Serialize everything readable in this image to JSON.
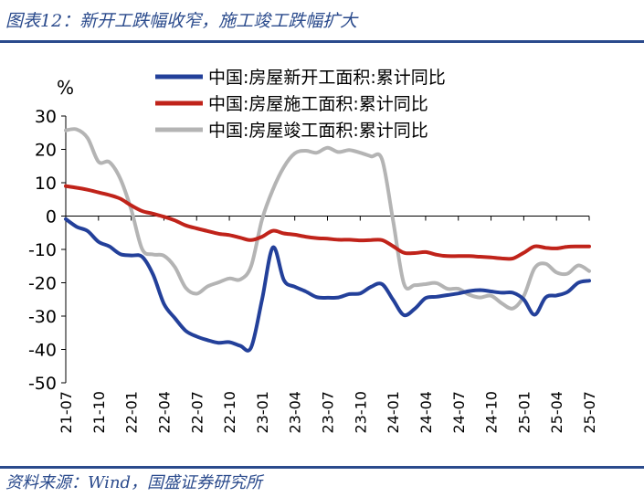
{
  "header": {
    "title": "图表12：新开工跌幅收窄，施工竣工跌幅扩大"
  },
  "footer": {
    "source": "资料来源：Wind，国盛证券研究所"
  },
  "chart_data": {
    "type": "line",
    "ylabel": "%",
    "ylim": [
      -50,
      30
    ],
    "yticks": [
      30,
      20,
      10,
      0,
      -10,
      -20,
      -30,
      -40,
      -50
    ],
    "xlim": [
      "2021-07",
      "2025-07"
    ],
    "xticks": [
      "21-07",
      "21-10",
      "22-01",
      "22-04",
      "22-07",
      "22-10",
      "23-01",
      "23-04",
      "23-07",
      "23-10",
      "24-01",
      "24-04",
      "24-07",
      "24-10",
      "25-01",
      "25-04",
      "25-07"
    ],
    "legend": {
      "position": "top-right"
    },
    "series": [
      {
        "name": "中国:房屋新开工面积:累计同比",
        "color": "#23409a",
        "points": [
          [
            "2021-07",
            -0.9
          ],
          [
            "2021-08",
            -3.2
          ],
          [
            "2021-09",
            -4.5
          ],
          [
            "2021-10",
            -7.7
          ],
          [
            "2021-11",
            -9.1
          ],
          [
            "2021-12",
            -11.4
          ],
          [
            "2022-01",
            -11.8
          ],
          [
            "2022-02",
            -12.2
          ],
          [
            "2022-03",
            -17.5
          ],
          [
            "2022-04",
            -26.3
          ],
          [
            "2022-05",
            -30.6
          ],
          [
            "2022-06",
            -34.4
          ],
          [
            "2022-07",
            -36.1
          ],
          [
            "2022-08",
            -37.2
          ],
          [
            "2022-09",
            -38.0
          ],
          [
            "2022-10",
            -37.8
          ],
          [
            "2022-11",
            -38.9
          ],
          [
            "2022-12",
            -39.4
          ],
          [
            "2023-01",
            -25.0
          ],
          [
            "2023-02",
            -9.4
          ],
          [
            "2023-03",
            -19.2
          ],
          [
            "2023-04",
            -21.2
          ],
          [
            "2023-05",
            -22.6
          ],
          [
            "2023-06",
            -24.3
          ],
          [
            "2023-07",
            -24.5
          ],
          [
            "2023-08",
            -24.4
          ],
          [
            "2023-09",
            -23.4
          ],
          [
            "2023-10",
            -23.2
          ],
          [
            "2023-11",
            -21.2
          ],
          [
            "2023-12",
            -20.4
          ],
          [
            "2024-01",
            -25.0
          ],
          [
            "2024-02",
            -29.7
          ],
          [
            "2024-03",
            -27.8
          ],
          [
            "2024-04",
            -24.6
          ],
          [
            "2024-05",
            -24.2
          ],
          [
            "2024-06",
            -23.7
          ],
          [
            "2024-07",
            -23.2
          ],
          [
            "2024-08",
            -22.5
          ],
          [
            "2024-09",
            -22.2
          ],
          [
            "2024-10",
            -22.6
          ],
          [
            "2024-11",
            -23.0
          ],
          [
            "2024-12",
            -23.0
          ],
          [
            "2025-01",
            -25.0
          ],
          [
            "2025-02",
            -29.6
          ],
          [
            "2025-03",
            -24.4
          ],
          [
            "2025-04",
            -23.8
          ],
          [
            "2025-05",
            -22.8
          ],
          [
            "2025-06",
            -20.0
          ],
          [
            "2025-07",
            -19.4
          ]
        ]
      },
      {
        "name": "中国:房屋施工面积:累计同比",
        "color": "#c0231a",
        "points": [
          [
            "2021-07",
            9.0
          ],
          [
            "2021-08",
            8.5
          ],
          [
            "2021-09",
            7.9
          ],
          [
            "2021-10",
            7.1
          ],
          [
            "2021-11",
            6.3
          ],
          [
            "2021-12",
            5.2
          ],
          [
            "2022-01",
            3.2
          ],
          [
            "2022-02",
            1.5
          ],
          [
            "2022-03",
            0.7
          ],
          [
            "2022-04",
            -0.2
          ],
          [
            "2022-05",
            -1.3
          ],
          [
            "2022-06",
            -2.8
          ],
          [
            "2022-07",
            -3.7
          ],
          [
            "2022-08",
            -4.5
          ],
          [
            "2022-09",
            -5.3
          ],
          [
            "2022-10",
            -5.7
          ],
          [
            "2022-11",
            -6.5
          ],
          [
            "2022-12",
            -7.2
          ],
          [
            "2023-01",
            -6.2
          ],
          [
            "2023-02",
            -4.4
          ],
          [
            "2023-03",
            -5.2
          ],
          [
            "2023-04",
            -5.6
          ],
          [
            "2023-05",
            -6.2
          ],
          [
            "2023-06",
            -6.6
          ],
          [
            "2023-07",
            -6.8
          ],
          [
            "2023-08",
            -7.1
          ],
          [
            "2023-09",
            -7.1
          ],
          [
            "2023-10",
            -7.3
          ],
          [
            "2023-11",
            -7.2
          ],
          [
            "2023-12",
            -7.2
          ],
          [
            "2024-01",
            -9.0
          ],
          [
            "2024-02",
            -11.0
          ],
          [
            "2024-03",
            -11.1
          ],
          [
            "2024-04",
            -10.8
          ],
          [
            "2024-05",
            -11.6
          ],
          [
            "2024-06",
            -12.0
          ],
          [
            "2024-07",
            -12.0
          ],
          [
            "2024-08",
            -12.0
          ],
          [
            "2024-09",
            -12.2
          ],
          [
            "2024-10",
            -12.4
          ],
          [
            "2024-11",
            -12.7
          ],
          [
            "2024-12",
            -12.7
          ],
          [
            "2025-01",
            -11.0
          ],
          [
            "2025-02",
            -9.1
          ],
          [
            "2025-03",
            -9.5
          ],
          [
            "2025-04",
            -9.7
          ],
          [
            "2025-05",
            -9.2
          ],
          [
            "2025-06",
            -9.1
          ],
          [
            "2025-07",
            -9.1
          ]
        ]
      },
      {
        "name": "中国:房屋竣工面积:累计同比",
        "color": "#b4b4b4",
        "points": [
          [
            "2021-07",
            25.7
          ],
          [
            "2021-08",
            26.0
          ],
          [
            "2021-09",
            23.4
          ],
          [
            "2021-10",
            16.3
          ],
          [
            "2021-11",
            16.2
          ],
          [
            "2021-12",
            11.2
          ],
          [
            "2022-01",
            2.0
          ],
          [
            "2022-02",
            -9.9
          ],
          [
            "2022-03",
            -11.5
          ],
          [
            "2022-04",
            -11.9
          ],
          [
            "2022-05",
            -15.3
          ],
          [
            "2022-06",
            -21.5
          ],
          [
            "2022-07",
            -23.3
          ],
          [
            "2022-08",
            -21.1
          ],
          [
            "2022-09",
            -19.9
          ],
          [
            "2022-10",
            -18.7
          ],
          [
            "2022-11",
            -19.0
          ],
          [
            "2022-12",
            -15.0
          ],
          [
            "2023-01",
            -1.0
          ],
          [
            "2023-02",
            8.0
          ],
          [
            "2023-03",
            14.7
          ],
          [
            "2023-04",
            18.8
          ],
          [
            "2023-05",
            19.6
          ],
          [
            "2023-06",
            19.0
          ],
          [
            "2023-07",
            20.5
          ],
          [
            "2023-08",
            19.2
          ],
          [
            "2023-09",
            19.8
          ],
          [
            "2023-10",
            19.0
          ],
          [
            "2023-11",
            17.9
          ],
          [
            "2023-12",
            17.0
          ],
          [
            "2024-01",
            -1.0
          ],
          [
            "2024-02",
            -20.2
          ],
          [
            "2024-03",
            -20.7
          ],
          [
            "2024-04",
            -20.4
          ],
          [
            "2024-05",
            -20.1
          ],
          [
            "2024-06",
            -21.8
          ],
          [
            "2024-07",
            -21.8
          ],
          [
            "2024-08",
            -23.6
          ],
          [
            "2024-09",
            -24.4
          ],
          [
            "2024-10",
            -23.9
          ],
          [
            "2024-11",
            -26.2
          ],
          [
            "2024-12",
            -27.7
          ],
          [
            "2025-01",
            -24.0
          ],
          [
            "2025-02",
            -15.6
          ],
          [
            "2025-03",
            -14.3
          ],
          [
            "2025-04",
            -16.9
          ],
          [
            "2025-05",
            -17.3
          ],
          [
            "2025-06",
            -14.8
          ],
          [
            "2025-07",
            -16.5
          ]
        ]
      }
    ]
  }
}
